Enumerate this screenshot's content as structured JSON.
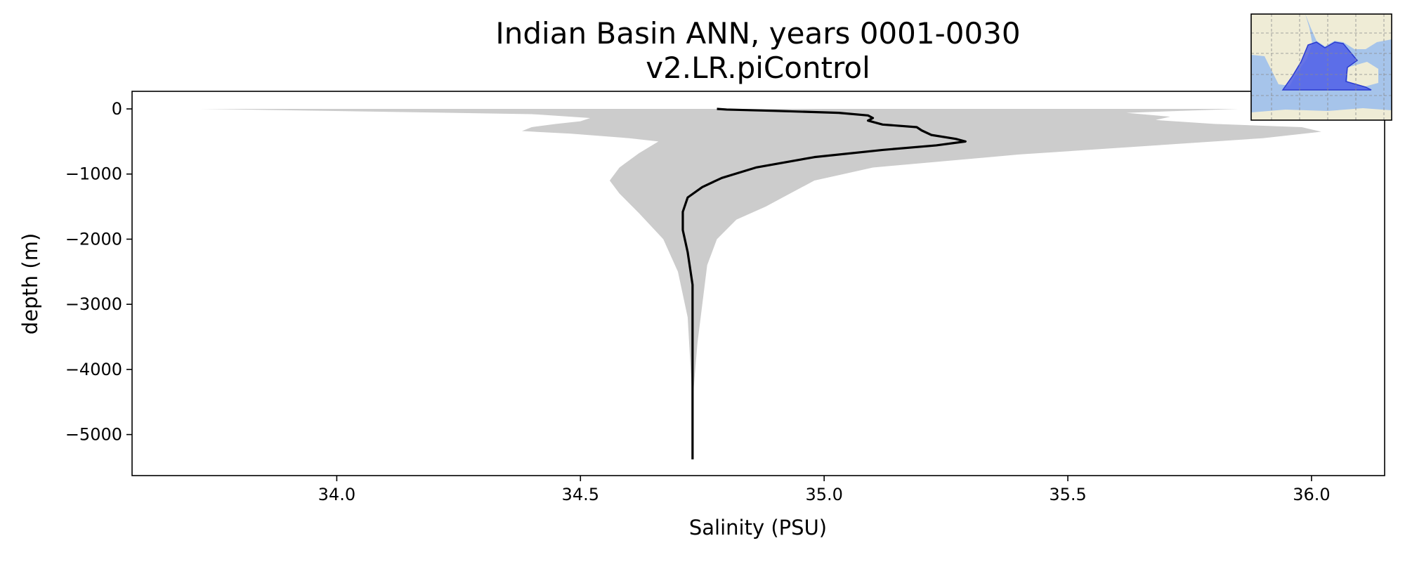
{
  "chart_data": {
    "type": "line",
    "title": "Indian Basin ANN, years 0001-0030",
    "subtitle": "v2.LR.piControl",
    "xlabel": "Salinity (PSU)",
    "ylabel": "depth (m)",
    "xlim": [
      33.58,
      36.15
    ],
    "ylim": [
      -5630,
      270
    ],
    "xticks": [
      34.0,
      34.5,
      35.0,
      35.5,
      36.0
    ],
    "xtick_labels": [
      "34.0",
      "34.5",
      "35.0",
      "35.5",
      "36.0"
    ],
    "yticks": [
      0,
      -1000,
      -2000,
      -3000,
      -4000,
      -5000
    ],
    "ytick_labels": [
      "0",
      "−1000",
      "−2000",
      "−3000",
      "−4000",
      "−5000"
    ],
    "grid": false,
    "series": [
      {
        "role": "mean",
        "color": "#000000",
        "points": [
          [
            34.78,
            0
          ],
          [
            34.8,
            -10
          ],
          [
            34.9,
            -30
          ],
          [
            35.03,
            -60
          ],
          [
            35.09,
            -100
          ],
          [
            35.1,
            -140
          ],
          [
            35.09,
            -180
          ],
          [
            35.12,
            -240
          ],
          [
            35.19,
            -280
          ],
          [
            35.2,
            -330
          ],
          [
            35.22,
            -400
          ],
          [
            35.27,
            -460
          ],
          [
            35.29,
            -500
          ],
          [
            35.23,
            -560
          ],
          [
            35.12,
            -630
          ],
          [
            34.98,
            -740
          ],
          [
            34.86,
            -900
          ],
          [
            34.79,
            -1060
          ],
          [
            34.75,
            -1200
          ],
          [
            34.72,
            -1360
          ],
          [
            34.71,
            -1580
          ],
          [
            34.71,
            -1860
          ],
          [
            34.72,
            -2200
          ],
          [
            34.73,
            -2700
          ],
          [
            34.73,
            -3200
          ],
          [
            34.73,
            -4000
          ],
          [
            34.73,
            -4800
          ],
          [
            34.73,
            -5380
          ]
        ]
      },
      {
        "role": "range",
        "color": "#cccccc",
        "lower": [
          [
            33.72,
            0
          ],
          [
            34.4,
            -80
          ],
          [
            34.52,
            -140
          ],
          [
            34.5,
            -190
          ],
          [
            34.45,
            -230
          ],
          [
            34.4,
            -280
          ],
          [
            34.38,
            -340
          ],
          [
            34.48,
            -380
          ],
          [
            34.6,
            -450
          ],
          [
            34.66,
            -500
          ],
          [
            34.62,
            -680
          ],
          [
            34.58,
            -900
          ],
          [
            34.56,
            -1100
          ],
          [
            34.58,
            -1300
          ],
          [
            34.62,
            -1600
          ],
          [
            34.67,
            -2000
          ],
          [
            34.7,
            -2500
          ],
          [
            34.72,
            -3200
          ],
          [
            34.73,
            -4500
          ]
        ],
        "upper": [
          [
            35.85,
            0
          ],
          [
            35.62,
            -60
          ],
          [
            35.71,
            -120
          ],
          [
            35.68,
            -170
          ],
          [
            35.8,
            -230
          ],
          [
            35.98,
            -280
          ],
          [
            36.02,
            -350
          ],
          [
            35.9,
            -450
          ],
          [
            35.7,
            -550
          ],
          [
            35.4,
            -700
          ],
          [
            35.1,
            -900
          ],
          [
            34.98,
            -1100
          ],
          [
            34.93,
            -1300
          ],
          [
            34.88,
            -1500
          ],
          [
            34.82,
            -1700
          ],
          [
            34.78,
            -2000
          ],
          [
            34.76,
            -2400
          ],
          [
            34.75,
            -3000
          ],
          [
            34.74,
            -3600
          ],
          [
            34.73,
            -4500
          ]
        ]
      }
    ]
  },
  "inset_map": {
    "description_color_land": "#efecd6",
    "description_color_ocean": "#a6c4ea",
    "highlight_color": "#4f5fe8"
  }
}
